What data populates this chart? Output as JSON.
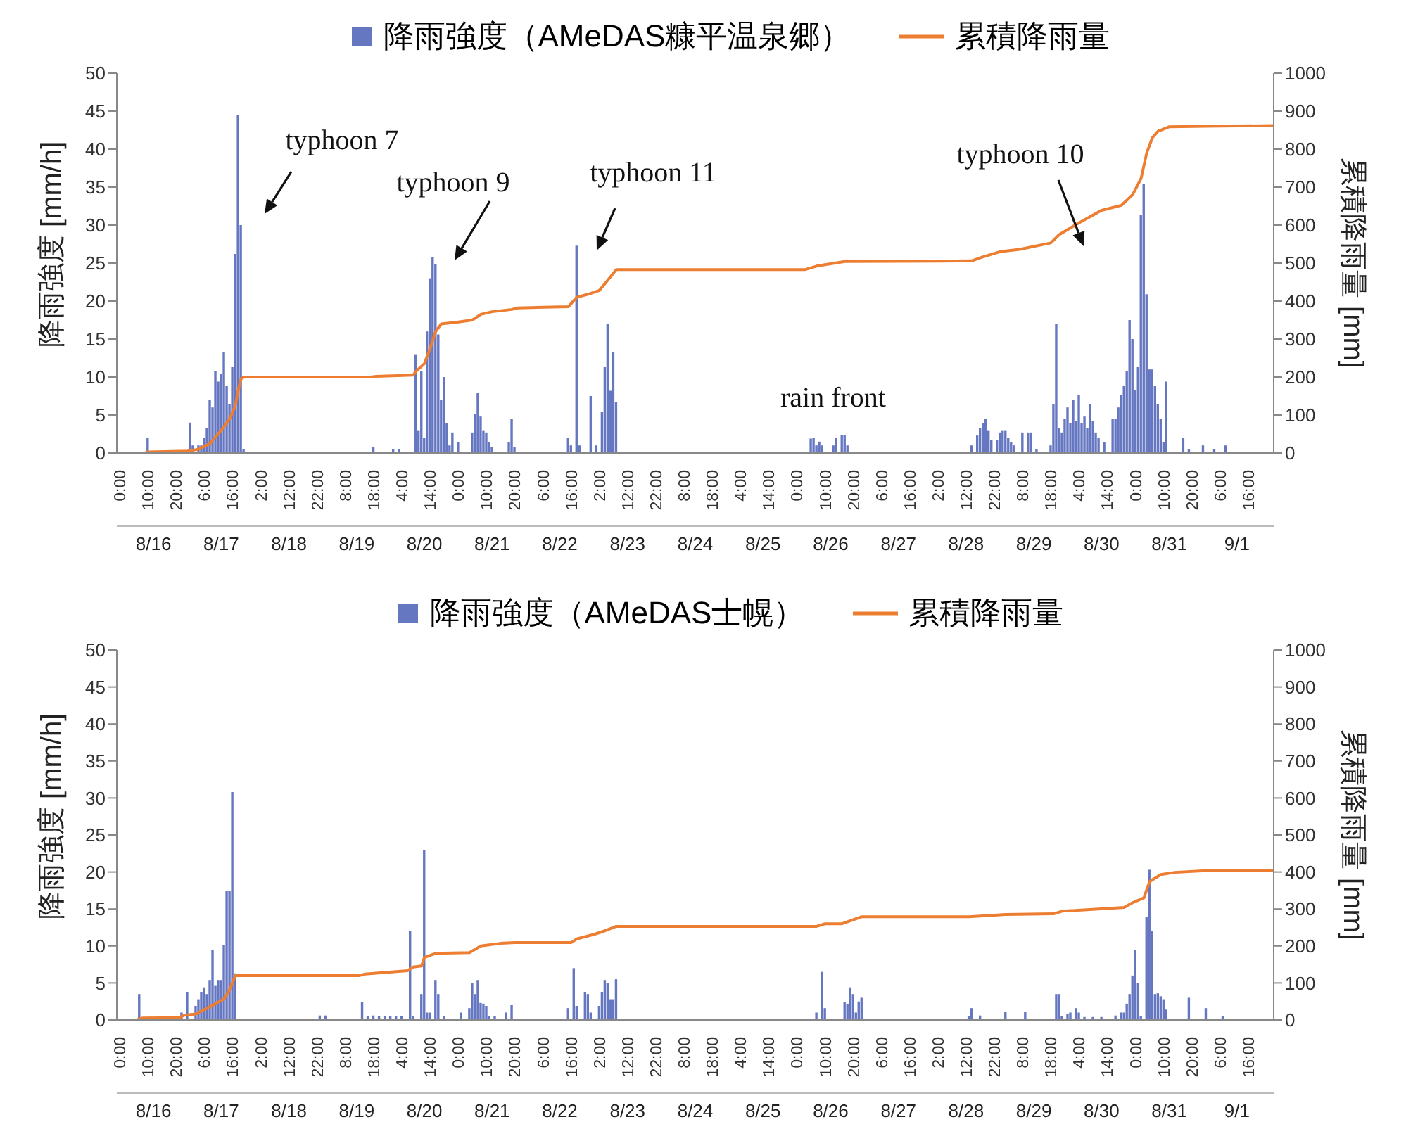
{
  "chart_data": [
    {
      "type": "bar",
      "ylabel": "降雨強度 [mm/h]",
      "y2label": "累積降雨量 [mm]",
      "legend": "top",
      "xlim": [
        "--08-15T23:00",
        "--09-02T01:00"
      ],
      "xticks": [
        {
          "value": "--08-16T00:00",
          "label": "0:00"
        },
        {
          "value": "--08-16T10:00",
          "label": "10:00"
        },
        {
          "value": "--08-16T20:00",
          "label": "20:00"
        },
        {
          "value": "--08-17T06:00",
          "label": "6:00"
        },
        {
          "value": "--08-17T16:00",
          "label": "16:00"
        },
        {
          "value": "--08-18T02:00",
          "label": "2:00"
        },
        {
          "value": "--08-18T12:00",
          "label": "12:00"
        },
        {
          "value": "--08-18T22:00",
          "label": "22:00"
        },
        {
          "value": "--08-19T08:00",
          "label": "8:00"
        },
        {
          "value": "--08-19T18:00",
          "label": "18:00"
        },
        {
          "value": "--08-20T04:00",
          "label": "4:00"
        },
        {
          "value": "--08-20T14:00",
          "label": "14:00"
        },
        {
          "value": "--08-21T00:00",
          "label": "0:00"
        },
        {
          "value": "--08-21T10:00",
          "label": "10:00"
        },
        {
          "value": "--08-21T20:00",
          "label": "20:00"
        },
        {
          "value": "--08-22T06:00",
          "label": "6:00"
        },
        {
          "value": "--08-22T16:00",
          "label": "16:00"
        },
        {
          "value": "--08-23T02:00",
          "label": "2:00"
        },
        {
          "value": "--08-23T12:00",
          "label": "12:00"
        },
        {
          "value": "--08-23T22:00",
          "label": "22:00"
        },
        {
          "value": "--08-24T08:00",
          "label": "8:00"
        },
        {
          "value": "--08-24T18:00",
          "label": "18:00"
        },
        {
          "value": "--08-25T04:00",
          "label": "4:00"
        },
        {
          "value": "--08-25T14:00",
          "label": "14:00"
        },
        {
          "value": "--08-26T00:00",
          "label": "0:00"
        },
        {
          "value": "--08-26T10:00",
          "label": "10:00"
        },
        {
          "value": "--08-26T20:00",
          "label": "20:00"
        },
        {
          "value": "--08-27T06:00",
          "label": "6:00"
        },
        {
          "value": "--08-27T16:00",
          "label": "16:00"
        },
        {
          "value": "--08-28T02:00",
          "label": "2:00"
        },
        {
          "value": "--08-28T12:00",
          "label": "12:00"
        },
        {
          "value": "--08-28T22:00",
          "label": "22:00"
        },
        {
          "value": "--08-29T08:00",
          "label": "8:00"
        },
        {
          "value": "--08-29T18:00",
          "label": "18:00"
        },
        {
          "value": "--08-30T04:00",
          "label": "4:00"
        },
        {
          "value": "--08-30T14:00",
          "label": "14:00"
        },
        {
          "value": "--08-31T00:00",
          "label": "0:00"
        },
        {
          "value": "--08-31T10:00",
          "label": "10:00"
        },
        {
          "value": "--08-31T20:00",
          "label": "20:00"
        },
        {
          "value": "--09-01T06:00",
          "label": "6:00"
        },
        {
          "value": "--09-01T16:00",
          "label": "16:00"
        }
      ],
      "x2ticks": [
        {
          "value": "--08-16T12:00",
          "label": "8/16"
        },
        {
          "value": "--08-17T12:00",
          "label": "8/17"
        },
        {
          "value": "--08-18T12:00",
          "label": "8/18"
        },
        {
          "value": "--08-19T12:00",
          "label": "8/19"
        },
        {
          "value": "--08-20T12:00",
          "label": "8/20"
        },
        {
          "value": "--08-21T12:00",
          "label": "8/21"
        },
        {
          "value": "--08-22T12:00",
          "label": "8/22"
        },
        {
          "value": "--08-23T12:00",
          "label": "8/23"
        },
        {
          "value": "--08-24T12:00",
          "label": "8/24"
        },
        {
          "value": "--08-25T12:00",
          "label": "8/25"
        },
        {
          "value": "--08-26T12:00",
          "label": "8/26"
        },
        {
          "value": "--08-27T12:00",
          "label": "8/27"
        },
        {
          "value": "--08-28T12:00",
          "label": "8/28"
        },
        {
          "value": "--08-29T12:00",
          "label": "8/29"
        },
        {
          "value": "--08-30T12:00",
          "label": "8/30"
        },
        {
          "value": "--08-31T12:00",
          "label": "8/31"
        },
        {
          "value": "--09-01T12:00",
          "label": "9/1"
        }
      ],
      "x2lim": [
        "--08-15T23:00",
        "--09-02T01:00"
      ],
      "ylim": [
        0,
        50
      ],
      "yticks": [
        0,
        5,
        10,
        15,
        20,
        25,
        30,
        35,
        40,
        45,
        50
      ],
      "y2lim": [
        0,
        1000
      ],
      "y2ticks": [
        0,
        100,
        200,
        300,
        400,
        500,
        600,
        700,
        800,
        900,
        1000
      ],
      "annotations": [
        "typhoon 7",
        "typhoon 9",
        "typhoon 11",
        "typhoon 10",
        "rain front"
      ],
      "series": [
        {
          "name": "降雨強度（AMeDAS糠平温泉郷）",
          "type": "bar",
          "color": "#6677c2",
          "x": [
            "--08-16T10:00",
            "--08-17T01:00",
            "--08-17T02:00",
            "--08-17T03:00",
            "--08-17T04:00",
            "--08-17T05:00",
            "--08-17T06:00",
            "--08-17T07:00",
            "--08-17T08:00",
            "--08-17T09:00",
            "--08-17T10:00",
            "--08-17T11:00",
            "--08-17T12:00",
            "--08-17T13:00",
            "--08-17T14:00",
            "--08-17T15:00",
            "--08-17T16:00",
            "--08-17T17:00",
            "--08-17T18:00",
            "--08-17T19:00",
            "--08-17T20:00",
            "--08-19T18:00",
            "--08-20T01:00",
            "--08-20T03:00",
            "--08-20T09:00",
            "--08-20T10:00",
            "--08-20T11:00",
            "--08-20T12:00",
            "--08-20T13:00",
            "--08-20T14:00",
            "--08-20T15:00",
            "--08-20T16:00",
            "--08-20T17:00",
            "--08-20T18:00",
            "--08-20T19:00",
            "--08-20T20:00",
            "--08-20T21:00",
            "--08-20T22:00",
            "--08-21T00:00",
            "--08-21T05:00",
            "--08-21T06:00",
            "--08-21T07:00",
            "--08-21T08:00",
            "--08-21T09:00",
            "--08-21T10:00",
            "--08-21T11:00",
            "--08-21T12:00",
            "--08-21T18:00",
            "--08-21T19:00",
            "--08-21T20:00",
            "--08-22T15:00",
            "--08-22T16:00",
            "--08-22T18:00",
            "--08-22T19:00",
            "--08-22T23:00",
            "--08-23T01:00",
            "--08-23T03:00",
            "--08-23T04:00",
            "--08-23T05:00",
            "--08-23T06:00",
            "--08-23T07:00",
            "--08-23T08:00",
            "--08-26T05:00",
            "--08-26T06:00",
            "--08-26T07:00",
            "--08-26T08:00",
            "--08-26T09:00",
            "--08-26T13:00",
            "--08-26T14:00",
            "--08-26T16:00",
            "--08-26T17:00",
            "--08-26T18:00",
            "--08-28T14:00",
            "--08-28T16:00",
            "--08-28T17:00",
            "--08-28T18:00",
            "--08-28T19:00",
            "--08-28T20:00",
            "--08-28T21:00",
            "--08-28T23:00",
            "--08-29T00:00",
            "--08-29T01:00",
            "--08-29T02:00",
            "--08-29T03:00",
            "--08-29T04:00",
            "--08-29T05:00",
            "--08-29T08:00",
            "--08-29T10:00",
            "--08-29T11:00",
            "--08-29T13:00",
            "--08-29T18:00",
            "--08-29T19:00",
            "--08-29T20:00",
            "--08-29T21:00",
            "--08-29T22:00",
            "--08-29T23:00",
            "--08-30T00:00",
            "--08-30T01:00",
            "--08-30T02:00",
            "--08-30T03:00",
            "--08-30T04:00",
            "--08-30T05:00",
            "--08-30T06:00",
            "--08-30T07:00",
            "--08-30T08:00",
            "--08-30T09:00",
            "--08-30T10:00",
            "--08-30T11:00",
            "--08-30T13:00",
            "--08-30T16:00",
            "--08-30T17:00",
            "--08-30T18:00",
            "--08-30T19:00",
            "--08-30T20:00",
            "--08-30T21:00",
            "--08-30T22:00",
            "--08-30T23:00",
            "--08-31T00:00",
            "--08-31T01:00",
            "--08-31T02:00",
            "--08-31T03:00",
            "--08-31T04:00",
            "--08-31T05:00",
            "--08-31T06:00",
            "--08-31T07:00",
            "--08-31T08:00",
            "--08-31T09:00",
            "--08-31T10:00",
            "--08-31T11:00",
            "--08-31T17:00",
            "--08-31T19:00",
            "--09-01T00:00",
            "--09-01T04:00",
            "--09-01T08:00"
          ],
          "values": [
            2,
            4,
            1,
            null,
            1,
            1,
            2,
            3.3,
            7,
            6,
            10.8,
            9.4,
            10.4,
            13.3,
            8.8,
            6.4,
            11.3,
            26.2,
            44.5,
            30,
            0.5,
            0.8,
            0.5,
            0.5,
            13,
            3,
            10.8,
            2,
            16,
            23,
            25.8,
            24.9,
            15.6,
            7,
            10,
            3.9,
            1,
            2.7,
            1.4,
            2.7,
            5.1,
            7.9,
            4.8,
            3,
            2.7,
            1.4,
            0.8,
            1.4,
            4.5,
            0.8,
            2,
            1,
            27.3,
            1,
            7.5,
            1,
            5.4,
            11.3,
            17,
            8.2,
            13.3,
            6.7,
            1.9,
            2,
            1,
            1.5,
            1,
            1,
            2,
            2.4,
            2.4,
            1,
            1,
            2.3,
            3.3,
            3.9,
            4.5,
            3,
            1.7,
            1.7,
            2.7,
            3,
            3,
            2,
            1.4,
            1,
            2.7,
            2.7,
            2.7,
            0.5,
            1,
            6.4,
            17,
            3.3,
            2.7,
            4.5,
            6,
            3.9,
            7,
            4.2,
            7.6,
            3.9,
            4.8,
            3.3,
            6.4,
            4.2,
            2.7,
            2,
            1.4,
            4.5,
            4.5,
            6,
            7.6,
            8.8,
            10.8,
            17.5,
            15,
            8.3,
            11.3,
            31.4,
            35.4,
            20.9,
            11,
            11,
            8.8,
            6.4,
            4.5,
            1.4,
            9.4,
            2,
            0.5,
            1,
            0.5,
            1
          ]
        },
        {
          "name": "累積降雨量",
          "type": "line",
          "axis": "y2",
          "color": "#ed7d31",
          "x": [
            "--08-16T00:00",
            "--08-16T09:00",
            "--08-16T10:00",
            "--08-17T00:00",
            "--08-17T04:00",
            "--08-17T08:00",
            "--08-17T12:00",
            "--08-17T15:00",
            "--08-17T17:00",
            "--08-17T18:00",
            "--08-17T19:00",
            "--08-17T20:00",
            "--08-19T17:00",
            "--08-19T19:00",
            "--08-20T08:00",
            "--08-20T09:00",
            "--08-20T12:00",
            "--08-20T14:00",
            "--08-20T16:00",
            "--08-20T18:00",
            "--08-21T00:00",
            "--08-21T05:00",
            "--08-21T08:00",
            "--08-21T12:00",
            "--08-21T19:00",
            "--08-21T21:00",
            "--08-22T15:00",
            "--08-22T18:00",
            "--08-22T22:00",
            "--08-23T02:00",
            "--08-23T05:00",
            "--08-23T08:00",
            "--08-26T03:00",
            "--08-26T07:00",
            "--08-26T10:00",
            "--08-26T17:00",
            "--08-28T03:00",
            "--08-28T14:00",
            "--08-28T17:00",
            "--08-29T00:00",
            "--08-29T07:00",
            "--08-29T18:00",
            "--08-29T21:00",
            "--08-30T04:00",
            "--08-30T12:00",
            "--08-30T19:00",
            "--08-30T23:00",
            "--08-31T02:00",
            "--08-31T04:00",
            "--08-31T06:00",
            "--08-31T08:00",
            "--08-31T12:00",
            "--09-01T01:00",
            "--09-02T01:00"
          ],
          "values": [
            0,
            0,
            3,
            5,
            10,
            25,
            60,
            90,
            125,
            165,
            195,
            200,
            200,
            202,
            205,
            215,
            235,
            275,
            320,
            340,
            345,
            350,
            365,
            372,
            378,
            382,
            385,
            410,
            418,
            428,
            455,
            483,
            483,
            492,
            496,
            504,
            505,
            506,
            514,
            530,
            536,
            553,
            575,
            606,
            639,
            652,
            680,
            723,
            790,
            830,
            847,
            859,
            860,
            862
          ]
        }
      ]
    },
    {
      "type": "bar",
      "ylabel": "降雨強度 [mm/h]",
      "y2label": "累積降雨量 [mm]",
      "legend": "top",
      "xlim": [
        "--08-15T23:00",
        "--09-02T01:00"
      ],
      "xticks": [
        {
          "value": "--08-16T00:00",
          "label": "0:00"
        },
        {
          "value": "--08-16T10:00",
          "label": "10:00"
        },
        {
          "value": "--08-16T20:00",
          "label": "20:00"
        },
        {
          "value": "--08-17T06:00",
          "label": "6:00"
        },
        {
          "value": "--08-17T16:00",
          "label": "16:00"
        },
        {
          "value": "--08-18T02:00",
          "label": "2:00"
        },
        {
          "value": "--08-18T12:00",
          "label": "12:00"
        },
        {
          "value": "--08-18T22:00",
          "label": "22:00"
        },
        {
          "value": "--08-19T08:00",
          "label": "8:00"
        },
        {
          "value": "--08-19T18:00",
          "label": "18:00"
        },
        {
          "value": "--08-20T04:00",
          "label": "4:00"
        },
        {
          "value": "--08-20T14:00",
          "label": "14:00"
        },
        {
          "value": "--08-21T00:00",
          "label": "0:00"
        },
        {
          "value": "--08-21T10:00",
          "label": "10:00"
        },
        {
          "value": "--08-21T20:00",
          "label": "20:00"
        },
        {
          "value": "--08-22T06:00",
          "label": "6:00"
        },
        {
          "value": "--08-22T16:00",
          "label": "16:00"
        },
        {
          "value": "--08-23T02:00",
          "label": "2:00"
        },
        {
          "value": "--08-23T12:00",
          "label": "12:00"
        },
        {
          "value": "--08-23T22:00",
          "label": "22:00"
        },
        {
          "value": "--08-24T08:00",
          "label": "8:00"
        },
        {
          "value": "--08-24T18:00",
          "label": "18:00"
        },
        {
          "value": "--08-25T04:00",
          "label": "4:00"
        },
        {
          "value": "--08-25T14:00",
          "label": "14:00"
        },
        {
          "value": "--08-26T00:00",
          "label": "0:00"
        },
        {
          "value": "--08-26T10:00",
          "label": "10:00"
        },
        {
          "value": "--08-26T20:00",
          "label": "20:00"
        },
        {
          "value": "--08-27T06:00",
          "label": "6:00"
        },
        {
          "value": "--08-27T16:00",
          "label": "16:00"
        },
        {
          "value": "--08-28T02:00",
          "label": "2:00"
        },
        {
          "value": "--08-28T12:00",
          "label": "12:00"
        },
        {
          "value": "--08-28T22:00",
          "label": "22:00"
        },
        {
          "value": "--08-29T08:00",
          "label": "8:00"
        },
        {
          "value": "--08-29T18:00",
          "label": "18:00"
        },
        {
          "value": "--08-30T04:00",
          "label": "4:00"
        },
        {
          "value": "--08-30T14:00",
          "label": "14:00"
        },
        {
          "value": "--08-31T00:00",
          "label": "0:00"
        },
        {
          "value": "--08-31T10:00",
          "label": "10:00"
        },
        {
          "value": "--08-31T20:00",
          "label": "20:00"
        },
        {
          "value": "--09-01T06:00",
          "label": "6:00"
        },
        {
          "value": "--09-01T16:00",
          "label": "16:00"
        }
      ],
      "x2ticks": [
        {
          "value": "--08-16T12:00",
          "label": "8/16"
        },
        {
          "value": "--08-17T12:00",
          "label": "8/17"
        },
        {
          "value": "--08-18T12:00",
          "label": "8/18"
        },
        {
          "value": "--08-19T12:00",
          "label": "8/19"
        },
        {
          "value": "--08-20T12:00",
          "label": "8/20"
        },
        {
          "value": "--08-21T12:00",
          "label": "8/21"
        },
        {
          "value": "--08-22T12:00",
          "label": "8/22"
        },
        {
          "value": "--08-23T12:00",
          "label": "8/23"
        },
        {
          "value": "--08-24T12:00",
          "label": "8/24"
        },
        {
          "value": "--08-25T12:00",
          "label": "8/25"
        },
        {
          "value": "--08-26T12:00",
          "label": "8/26"
        },
        {
          "value": "--08-27T12:00",
          "label": "8/27"
        },
        {
          "value": "--08-28T12:00",
          "label": "8/28"
        },
        {
          "value": "--08-29T12:00",
          "label": "8/29"
        },
        {
          "value": "--08-30T12:00",
          "label": "8/30"
        },
        {
          "value": "--08-31T12:00",
          "label": "8/31"
        },
        {
          "value": "--09-01T12:00",
          "label": "9/1"
        }
      ],
      "x2lim": [
        "--08-15T23:00",
        "--09-02T01:00"
      ],
      "ylim": [
        0,
        50
      ],
      "yticks": [
        0,
        5,
        10,
        15,
        20,
        25,
        30,
        35,
        40,
        45,
        50
      ],
      "y2lim": [
        0,
        1000
      ],
      "y2ticks": [
        0,
        100,
        200,
        300,
        400,
        500,
        600,
        700,
        800,
        900,
        1000
      ],
      "series": [
        {
          "name": "降雨強度（AMeDAS士幌）",
          "type": "bar",
          "color": "#6677c2",
          "x": [
            "--08-16T07:00",
            "--08-16T08:00",
            "--08-16T22:00",
            "--08-17T00:00",
            "--08-17T03:00",
            "--08-17T04:00",
            "--08-17T05:00",
            "--08-17T06:00",
            "--08-17T07:00",
            "--08-17T08:00",
            "--08-17T09:00",
            "--08-17T10:00",
            "--08-17T11:00",
            "--08-17T12:00",
            "--08-17T13:00",
            "--08-17T14:00",
            "--08-17T15:00",
            "--08-17T16:00",
            "--08-17T17:00",
            "--08-18T23:00",
            "--08-19T01:00",
            "--08-19T14:00",
            "--08-19T16:00",
            "--08-19T18:00",
            "--08-19T20:00",
            "--08-19T22:00",
            "--08-20T00:00",
            "--08-20T02:00",
            "--08-20T04:00",
            "--08-20T07:00",
            "--08-20T08:00",
            "--08-20T11:00",
            "--08-20T12:00",
            "--08-20T13:00",
            "--08-20T14:00",
            "--08-20T16:00",
            "--08-20T17:00",
            "--08-20T19:00",
            "--08-21T01:00",
            "--08-21T04:00",
            "--08-21T05:00",
            "--08-21T06:00",
            "--08-21T07:00",
            "--08-21T08:00",
            "--08-21T09:00",
            "--08-21T10:00",
            "--08-21T11:00",
            "--08-21T13:00",
            "--08-21T17:00",
            "--08-21T19:00",
            "--08-22T15:00",
            "--08-22T17:00",
            "--08-22T18:00",
            "--08-22T21:00",
            "--08-22T22:00",
            "--08-22T23:00",
            "--08-23T02:00",
            "--08-23T03:00",
            "--08-23T04:00",
            "--08-23T05:00",
            "--08-23T06:00",
            "--08-23T07:00",
            "--08-23T08:00",
            "--08-26T07:00",
            "--08-26T09:00",
            "--08-26T10:00",
            "--08-26T17:00",
            "--08-26T18:00",
            "--08-26T19:00",
            "--08-26T20:00",
            "--08-26T21:00",
            "--08-26T22:00",
            "--08-26T23:00",
            "--08-28T13:00",
            "--08-28T14:00",
            "--08-28T17:00",
            "--08-29T02:00",
            "--08-29T09:00",
            "--08-29T20:00",
            "--08-29T21:00",
            "--08-29T22:00",
            "--08-30T00:00",
            "--08-30T01:00",
            "--08-30T03:00",
            "--08-30T04:00",
            "--08-30T06:00",
            "--08-30T09:00",
            "--08-30T12:00",
            "--08-30T17:00",
            "--08-30T19:00",
            "--08-30T20:00",
            "--08-30T21:00",
            "--08-30T22:00",
            "--08-30T23:00",
            "--08-31T00:00",
            "--08-31T01:00",
            "--08-31T02:00",
            "--08-31T04:00",
            "--08-31T05:00",
            "--08-31T06:00",
            "--08-31T07:00",
            "--08-31T08:00",
            "--08-31T09:00",
            "--08-31T10:00",
            "--08-31T11:00",
            "--08-31T19:00",
            "--09-01T01:00",
            "--09-01T07:00"
          ],
          "values": [
            3.5,
            null,
            1,
            3.8,
            1.9,
            2.8,
            3.8,
            4.4,
            3.5,
            5.4,
            9.5,
            4.7,
            5.4,
            5.4,
            10.1,
            17.4,
            17.4,
            30.8,
            6.3,
            0.6,
            0.6,
            2.4,
            0.5,
            0.6,
            0.5,
            0.5,
            0.5,
            0.5,
            0.5,
            12,
            0.5,
            3.5,
            23,
            1,
            1,
            5.4,
            3.5,
            0.5,
            1,
            1.6,
            5,
            3.5,
            5.4,
            2.3,
            2.2,
            1.9,
            0.5,
            0.5,
            1,
            2,
            1.6,
            7,
            1.9,
            3.8,
            3.5,
            1,
            1.9,
            3.8,
            5.4,
            5,
            2.8,
            2.8,
            5.5,
            1,
            6.5,
            1.6,
            2.4,
            2.2,
            4.4,
            3.5,
            1,
            2.5,
            3,
            0.5,
            1.6,
            0.6,
            1.1,
            1.1,
            3.5,
            3.5,
            0.5,
            0.8,
            1,
            1.6,
            1,
            0.4,
            0.4,
            0.4,
            0.6,
            1,
            1,
            2.2,
            3.5,
            6,
            9.5,
            5,
            0.5,
            13.9,
            20.3,
            12,
            3.5,
            3.6,
            3.2,
            2.8,
            1.4,
            3,
            1.6,
            0.5
          ]
        },
        {
          "name": "累積降雨量",
          "type": "line",
          "axis": "y2",
          "color": "#ed7d31",
          "x": [
            "--08-16T00:00",
            "--08-16T06:00",
            "--08-16T08:00",
            "--08-16T21:00",
            "--08-16T23:00",
            "--08-17T03:00",
            "--08-17T07:00",
            "--08-17T10:00",
            "--08-17T13:00",
            "--08-17T15:00",
            "--08-17T17:00",
            "--08-19T13:00",
            "--08-19T15:00",
            "--08-20T06:00",
            "--08-20T08:00",
            "--08-20T11:00",
            "--08-20T12:00",
            "--08-20T16:00",
            "--08-21T04:00",
            "--08-21T08:00",
            "--08-21T15:00",
            "--08-21T20:00",
            "--08-22T16:00",
            "--08-22T18:00",
            "--08-23T00:00",
            "--08-23T04:00",
            "--08-23T08:00",
            "--08-26T07:00",
            "--08-26T10:00",
            "--08-26T16:00",
            "--08-26T23:00",
            "--08-28T13:00",
            "--08-29T02:00",
            "--08-29T19:00",
            "--08-29T22:00",
            "--08-30T20:00",
            "--08-30T23:00",
            "--08-31T03:00",
            "--08-31T05:00",
            "--08-31T09:00",
            "--08-31T14:00",
            "--09-01T02:00",
            "--09-02T01:00"
          ],
          "values": [
            0,
            0,
            5,
            6,
            13,
            16,
            32,
            44,
            57,
            82,
            120,
            120,
            124,
            133,
            143,
            146,
            169,
            180,
            182,
            200,
            207,
            209,
            209,
            219,
            231,
            241,
            253,
            253,
            260,
            260,
            279,
            279,
            285,
            287,
            294,
            304,
            317,
            330,
            374,
            393,
            399,
            404,
            404
          ]
        }
      ]
    }
  ]
}
